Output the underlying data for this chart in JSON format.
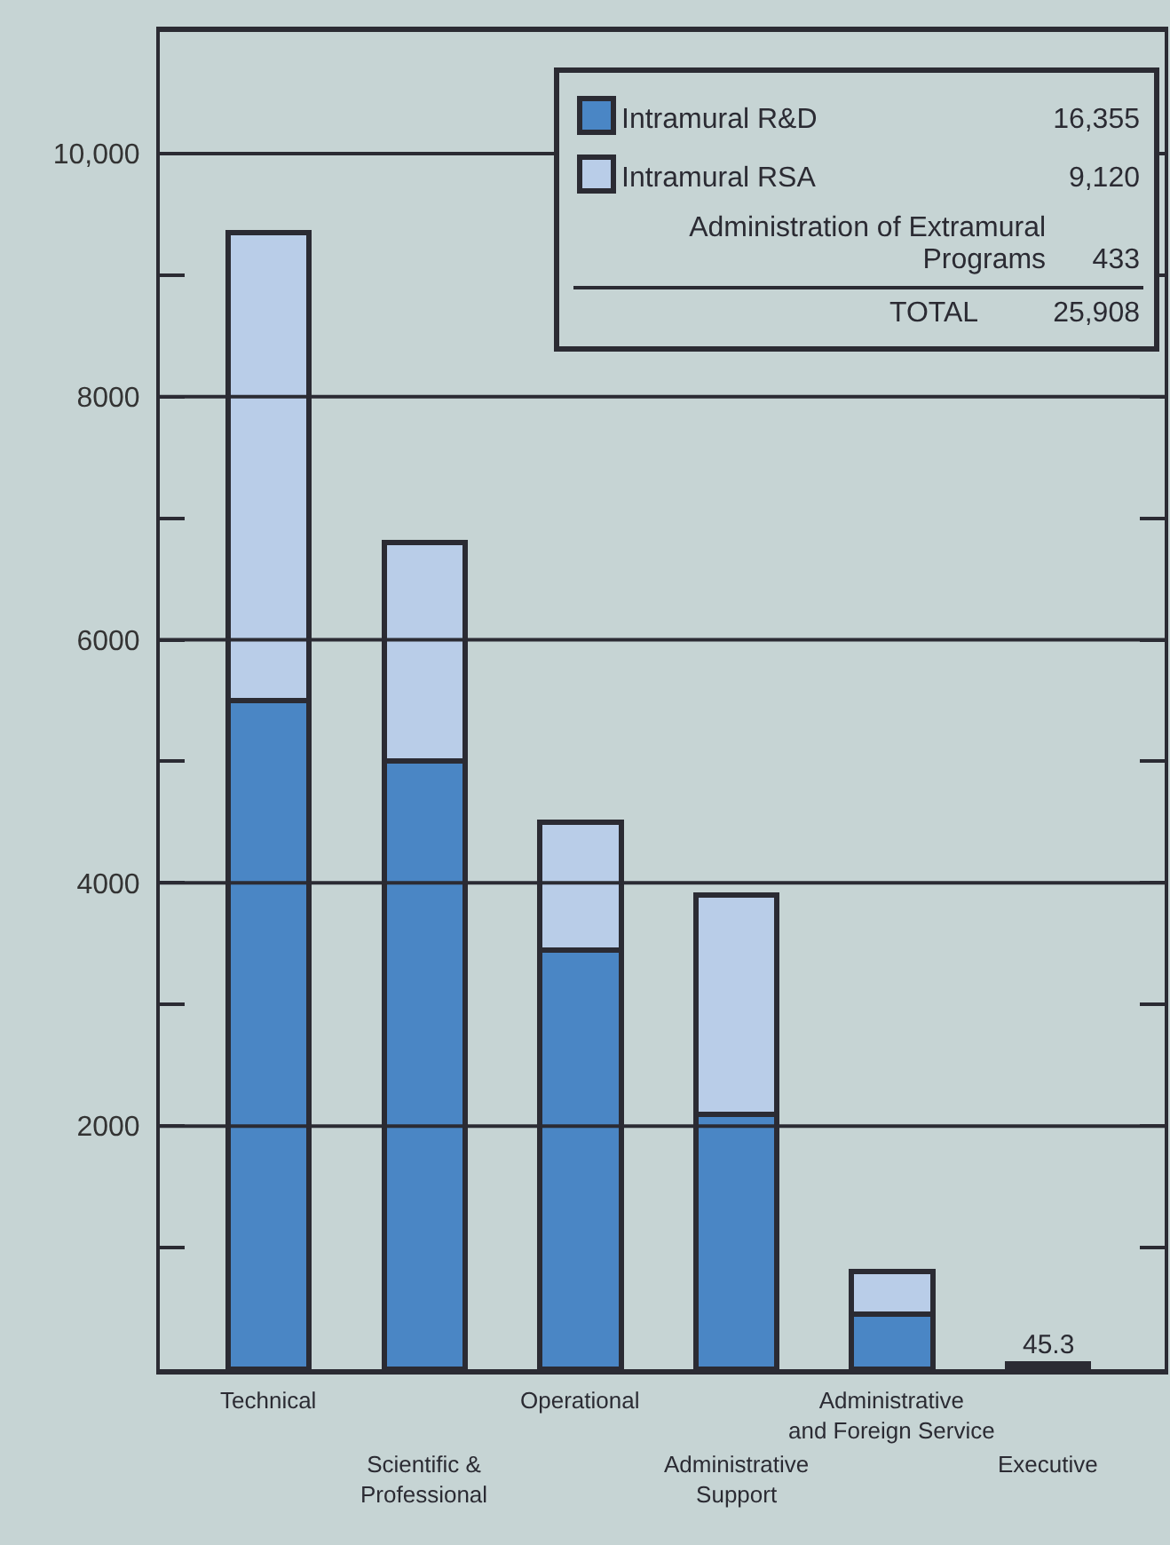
{
  "chart_data": {
    "type": "bar",
    "stacked": true,
    "categories": [
      "Technical",
      "Scientific & Professional",
      "Operational",
      "Administrative Support",
      "Administrative and Foreign Service",
      "Executive"
    ],
    "series": [
      {
        "name": "Intramural R&D",
        "color": "#4a86c5",
        "values": [
          5500,
          5000,
          3450,
          2100,
          450,
          45.3
        ],
        "value_labels": [
          null,
          null,
          null,
          null,
          null,
          "45.3"
        ]
      },
      {
        "name": "Intramural RSA",
        "color": "#b9cde8",
        "values": [
          3850,
          1800,
          1050,
          1800,
          350,
          null
        ]
      }
    ],
    "ylim": [
      0,
      11000
    ],
    "yticks": [
      {
        "value": 1000,
        "label": null
      },
      2000,
      {
        "value": 3000,
        "label": null
      },
      4000,
      {
        "value": 5000,
        "label": null
      },
      6000,
      {
        "value": 7000,
        "label": null
      },
      8000,
      {
        "value": 9000,
        "label": null
      },
      {
        "value": 10000,
        "label": "10,000"
      }
    ],
    "grid": "y",
    "legend": "top right",
    "annotations": [
      "16,355",
      "9,120",
      "Administration of Extramural Programs",
      "433",
      "TOTAL",
      "25,908"
    ]
  }
}
